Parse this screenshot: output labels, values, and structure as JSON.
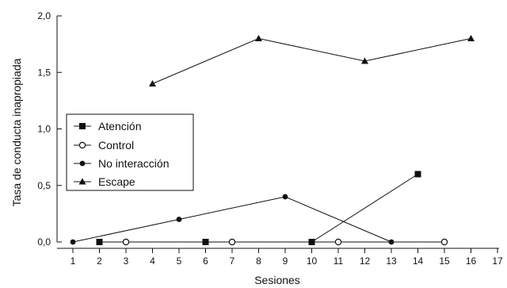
{
  "chart_data": {
    "type": "line",
    "xlabel": "Sesiones",
    "ylabel": "Tasa de conducta inapropiada",
    "xlim": [
      0.5,
      17
    ],
    "ylim": [
      0,
      2.0
    ],
    "x_ticks": [
      "1",
      "2",
      "3",
      "4",
      "5",
      "6",
      "7",
      "8",
      "9",
      "10",
      "11",
      "12",
      "13",
      "14",
      "15",
      "16",
      "17"
    ],
    "y_ticks": [
      "0,0",
      "0,5",
      "1,0",
      "1,5",
      "2,0"
    ],
    "grid": false,
    "legend_position": "left",
    "series": [
      {
        "name": "Atención",
        "marker": "square-filled",
        "segments": [
          [
            [
              2,
              0.0
            ],
            [
              6,
              0.0
            ],
            [
              10,
              0.0
            ],
            [
              14,
              0.6
            ]
          ]
        ]
      },
      {
        "name": "Control",
        "marker": "circle-open",
        "segments": [
          [
            [
              3,
              0.0
            ],
            [
              7,
              0.0
            ],
            [
              11,
              0.0
            ],
            [
              15,
              0.0
            ]
          ]
        ]
      },
      {
        "name": "No interacción",
        "marker": "circle-filled",
        "segments": [
          [
            [
              1,
              0.0
            ],
            [
              5,
              0.2
            ],
            [
              9,
              0.4
            ],
            [
              13,
              0.0
            ]
          ]
        ]
      },
      {
        "name": "Escape",
        "marker": "triangle-filled",
        "segments": [
          [
            [
              4,
              1.4
            ],
            [
              8,
              1.8
            ],
            [
              12,
              1.6
            ],
            [
              16,
              1.8
            ]
          ]
        ]
      }
    ],
    "legend_order": [
      0,
      1,
      2,
      3
    ]
  }
}
